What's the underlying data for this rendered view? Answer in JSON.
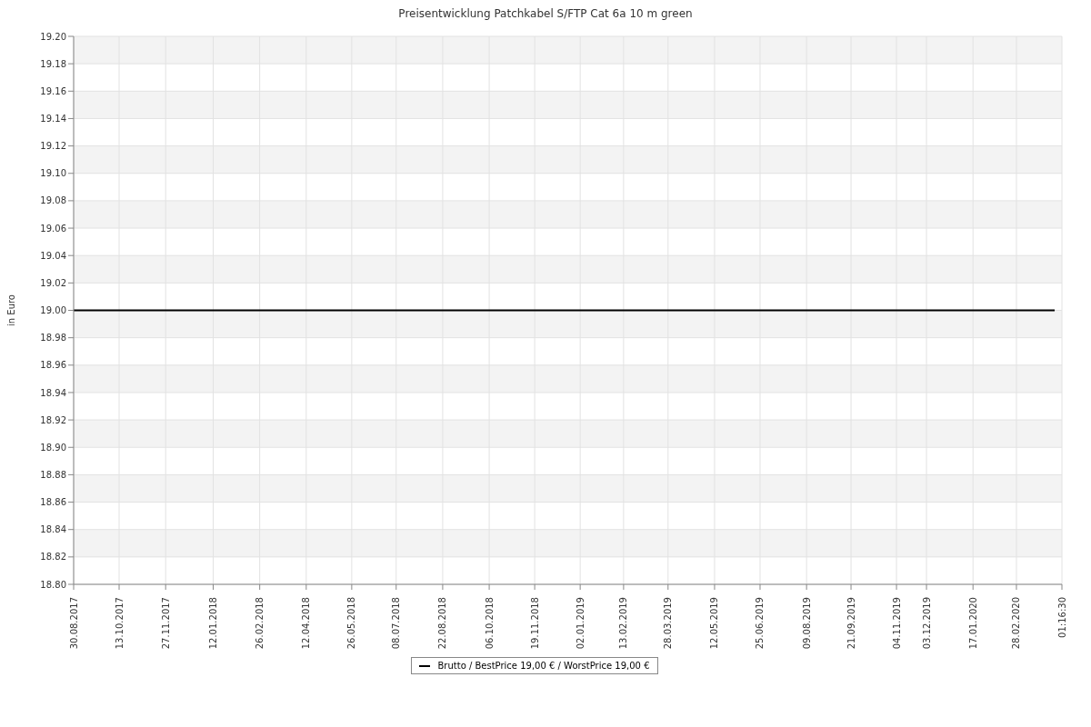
{
  "chart_data": {
    "type": "line",
    "title": "Preisentwicklung Patchkabel S/FTP Cat 6a 10 m green",
    "ylabel": "in Euro",
    "series": [
      {
        "name": "Brutto / BestPrice  19,00 € / WorstPrice  19,00 €",
        "color": "#000000",
        "x": [
          "2017-08-30",
          "2020-04-05"
        ],
        "values": [
          19.0,
          19.0
        ]
      }
    ],
    "xlim": [
      "2017-08-30",
      "2020-04-12"
    ],
    "xticks": [
      {
        "value": "2017-08-30",
        "label": "30.08.2017"
      },
      {
        "value": "2017-10-13",
        "label": "13.10.2017"
      },
      {
        "value": "2017-11-27",
        "label": "27.11.2017"
      },
      {
        "value": "2018-01-12",
        "label": "12.01.2018"
      },
      {
        "value": "2018-02-26",
        "label": "26.02.2018"
      },
      {
        "value": "2018-04-12",
        "label": "12.04.2018"
      },
      {
        "value": "2018-05-26",
        "label": "26.05.2018"
      },
      {
        "value": "2018-07-08",
        "label": "08.07.2018"
      },
      {
        "value": "2018-08-22",
        "label": "22.08.2018"
      },
      {
        "value": "2018-10-06",
        "label": "06.10.2018"
      },
      {
        "value": "2018-11-19",
        "label": "19.11.2018"
      },
      {
        "value": "2019-01-02",
        "label": "02.01.2019"
      },
      {
        "value": "2019-02-13",
        "label": "13.02.2019"
      },
      {
        "value": "2019-03-28",
        "label": "28.03.2019"
      },
      {
        "value": "2019-05-12",
        "label": "12.05.2019"
      },
      {
        "value": "2019-06-25",
        "label": "25.06.2019"
      },
      {
        "value": "2019-08-09",
        "label": "09.08.2019"
      },
      {
        "value": "2019-09-21",
        "label": "21.09.2019"
      },
      {
        "value": "2019-11-04",
        "label": "04.11.2019"
      },
      {
        "value": "2019-12-03",
        "label": "03.12.2019"
      },
      {
        "value": "2020-01-17",
        "label": "17.01.2020"
      },
      {
        "value": "2020-02-28",
        "label": "28.02.2020"
      },
      {
        "value": "2020-04-12",
        "label": "01:16:30"
      }
    ],
    "ylim": [
      18.8,
      19.2
    ],
    "yticks": [
      {
        "value": 18.8,
        "label": "18.80"
      },
      {
        "value": 18.82,
        "label": "18.82"
      },
      {
        "value": 18.84,
        "label": "18.84"
      },
      {
        "value": 18.86,
        "label": "18.86"
      },
      {
        "value": 18.88,
        "label": "18.88"
      },
      {
        "value": 18.9,
        "label": "18.90"
      },
      {
        "value": 18.92,
        "label": "18.92"
      },
      {
        "value": 18.94,
        "label": "18.94"
      },
      {
        "value": 18.96,
        "label": "18.96"
      },
      {
        "value": 18.98,
        "label": "18.98"
      },
      {
        "value": 19.0,
        "label": "19.00"
      },
      {
        "value": 19.02,
        "label": "19.02"
      },
      {
        "value": 19.04,
        "label": "19.04"
      },
      {
        "value": 19.06,
        "label": "19.06"
      },
      {
        "value": 19.08,
        "label": "19.08"
      },
      {
        "value": 19.1,
        "label": "19.10"
      },
      {
        "value": 19.12,
        "label": "19.12"
      },
      {
        "value": 19.14,
        "label": "19.14"
      },
      {
        "value": 19.16,
        "label": "19.16"
      },
      {
        "value": 19.18,
        "label": "19.18"
      },
      {
        "value": 19.2,
        "label": "19.20"
      }
    ],
    "grid": true,
    "legend": "bottom",
    "marker": "none",
    "line_style": "solid"
  }
}
